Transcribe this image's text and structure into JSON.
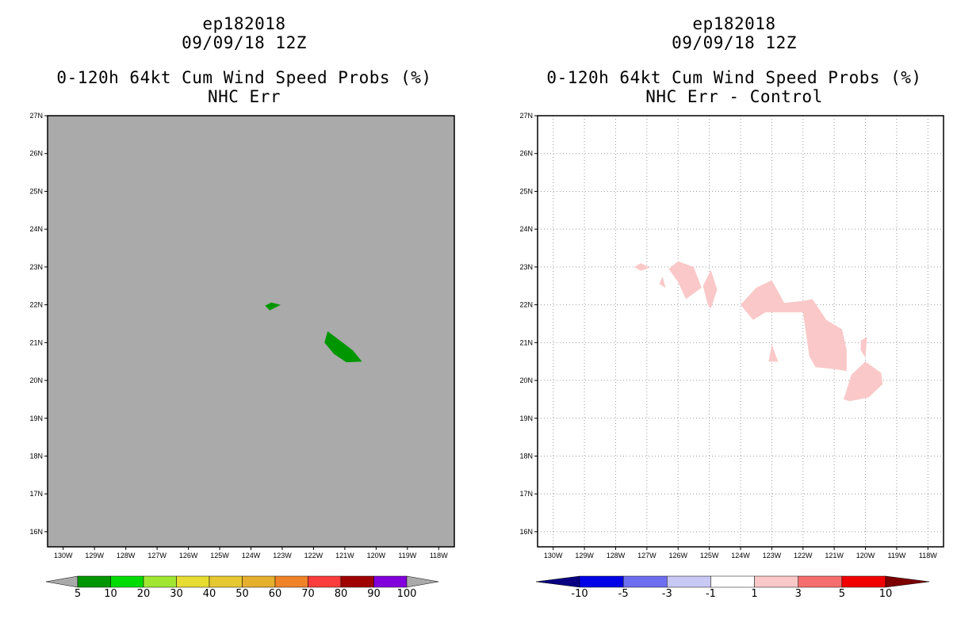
{
  "chart_data": [
    {
      "type": "contour-map",
      "storm_id": "ep182018",
      "datetime": "09/09/18 12Z",
      "title": "0-120h 64kt Cum Wind Speed Probs (%)",
      "subtitle": "NHC Err",
      "background_color": "#aaaaaa",
      "lon_ticks": [
        "130W",
        "129W",
        "128W",
        "127W",
        "126W",
        "125W",
        "124W",
        "123W",
        "122W",
        "121W",
        "120W",
        "119W",
        "118W"
      ],
      "lat_ticks": [
        "16N",
        "17N",
        "18N",
        "19N",
        "20N",
        "21N",
        "22N",
        "23N",
        "24N",
        "25N",
        "26N",
        "27N"
      ],
      "lon_values": [
        -130,
        -129,
        -128,
        -127,
        -126,
        -125,
        -124,
        -123,
        -122,
        -121,
        -120,
        -119,
        -118
      ],
      "lat_values": [
        16,
        17,
        18,
        19,
        20,
        21,
        22,
        23,
        24,
        25,
        26,
        27
      ],
      "xlim": [
        -130.5,
        -117.5
      ],
      "ylim": [
        15.6,
        27
      ],
      "grid": false,
      "regions": [
        {
          "name": "5-10 percent area small",
          "level": "5-10",
          "color": "#009600",
          "points": [
            [
              -123.55,
              21.98
            ],
            [
              -123.35,
              22.06
            ],
            [
              -123.05,
              22.0
            ],
            [
              -123.4,
              21.85
            ]
          ]
        },
        {
          "name": "5-10 percent area main",
          "level": "5-10",
          "color": "#009600",
          "points": [
            [
              -121.55,
              21.3
            ],
            [
              -121.15,
              21.05
            ],
            [
              -120.75,
              20.8
            ],
            [
              -120.45,
              20.5
            ],
            [
              -120.95,
              20.48
            ],
            [
              -121.35,
              20.7
            ],
            [
              -121.65,
              21.0
            ]
          ]
        }
      ],
      "colorbar": {
        "labels": [
          "5",
          "10",
          "20",
          "30",
          "40",
          "50",
          "60",
          "70",
          "80",
          "90",
          "100"
        ],
        "colors": [
          "#aaaaaa",
          "#009600",
          "#00dc00",
          "#a0e632",
          "#e6dc32",
          "#e6c832",
          "#e6af2d",
          "#f08228",
          "#fa3c3c",
          "#a00000",
          "#8200dc",
          "#aaaaaa"
        ]
      }
    },
    {
      "type": "contour-map",
      "storm_id": "ep182018",
      "datetime": "09/09/18 12Z",
      "title": "0-120h 64kt Cum Wind Speed Probs (%)",
      "subtitle": "NHC Err - Control",
      "background_color": "#ffffff",
      "lon_ticks": [
        "130W",
        "129W",
        "128W",
        "127W",
        "126W",
        "125W",
        "124W",
        "123W",
        "122W",
        "121W",
        "120W",
        "119W",
        "118W"
      ],
      "lat_ticks": [
        "16N",
        "17N",
        "18N",
        "19N",
        "20N",
        "21N",
        "22N",
        "23N",
        "24N",
        "25N",
        "26N",
        "27N"
      ],
      "lon_values": [
        -130,
        -129,
        -128,
        -127,
        -126,
        -125,
        -124,
        -123,
        -122,
        -121,
        -120,
        -119,
        -118
      ],
      "lat_values": [
        16,
        17,
        18,
        19,
        20,
        21,
        22,
        23,
        24,
        25,
        26,
        27
      ],
      "xlim": [
        -130.5,
        -117.5
      ],
      "ylim": [
        15.6,
        27
      ],
      "grid": true,
      "regions": [
        {
          "name": "1-3 diff a",
          "level": "1-3",
          "color": "#fac8c8",
          "points": [
            [
              -127.4,
              23.0
            ],
            [
              -127.2,
              23.1
            ],
            [
              -126.9,
              22.98
            ],
            [
              -127.2,
              22.9
            ]
          ]
        },
        {
          "name": "1-3 diff b",
          "level": "1-3",
          "color": "#fac8c8",
          "points": [
            [
              -126.6,
              22.55
            ],
            [
              -126.5,
              22.75
            ],
            [
              -126.4,
              22.45
            ]
          ]
        },
        {
          "name": "1-3 diff c",
          "level": "1-3",
          "color": "#fac8c8",
          "points": [
            [
              -126.3,
              22.95
            ],
            [
              -126.0,
              23.15
            ],
            [
              -125.5,
              23.0
            ],
            [
              -125.25,
              22.45
            ],
            [
              -125.75,
              22.15
            ],
            [
              -126.0,
              22.6
            ]
          ]
        },
        {
          "name": "1-3 diff d",
          "level": "1-3",
          "color": "#fac8c8",
          "points": [
            [
              -125.2,
              22.5
            ],
            [
              -124.95,
              22.92
            ],
            [
              -124.75,
              22.4
            ],
            [
              -124.95,
              21.9
            ],
            [
              -125.05,
              22.0
            ]
          ]
        },
        {
          "name": "1-3 diff e",
          "level": "1-3",
          "color": "#fac8c8",
          "points": [
            [
              -124.0,
              22.0
            ],
            [
              -123.5,
              22.45
            ],
            [
              -123.0,
              22.65
            ],
            [
              -122.6,
              22.05
            ],
            [
              -122.0,
              22.1
            ],
            [
              -121.7,
              22.15
            ],
            [
              -121.25,
              21.6
            ],
            [
              -120.75,
              21.35
            ],
            [
              -120.6,
              20.8
            ],
            [
              -120.6,
              20.25
            ],
            [
              -121.0,
              20.3
            ],
            [
              -121.6,
              20.35
            ],
            [
              -121.8,
              20.65
            ],
            [
              -122.0,
              21.8
            ],
            [
              -122.6,
              21.8
            ],
            [
              -123.2,
              21.8
            ],
            [
              -123.6,
              21.6
            ]
          ]
        },
        {
          "name": "1-3 diff f",
          "level": "1-3",
          "color": "#fac8c8",
          "points": [
            [
              -123.0,
              20.95
            ],
            [
              -122.8,
              20.5
            ],
            [
              -123.1,
              20.5
            ]
          ]
        },
        {
          "name": "1-3 diff g",
          "level": "1-3",
          "color": "#fac8c8",
          "points": [
            [
              -120.15,
              21.05
            ],
            [
              -119.95,
              21.15
            ],
            [
              -120.0,
              20.6
            ],
            [
              -120.15,
              20.8
            ]
          ]
        },
        {
          "name": "1-3 diff h",
          "level": "1-3",
          "color": "#fac8c8",
          "points": [
            [
              -120.45,
              20.15
            ],
            [
              -120.0,
              20.5
            ],
            [
              -119.5,
              20.2
            ],
            [
              -119.45,
              19.9
            ],
            [
              -119.9,
              19.55
            ],
            [
              -120.5,
              19.45
            ],
            [
              -120.7,
              19.5
            ]
          ]
        }
      ],
      "colorbar": {
        "labels": [
          "-10",
          "-5",
          "-3",
          "-1",
          "1",
          "3",
          "5",
          "10"
        ],
        "colors": [
          "#0a0082",
          "#0000e6",
          "#6e6ef0",
          "#c8c8f5",
          "#ffffff",
          "#fac8c8",
          "#f56e6e",
          "#f00000",
          "#7d0000"
        ]
      }
    }
  ]
}
